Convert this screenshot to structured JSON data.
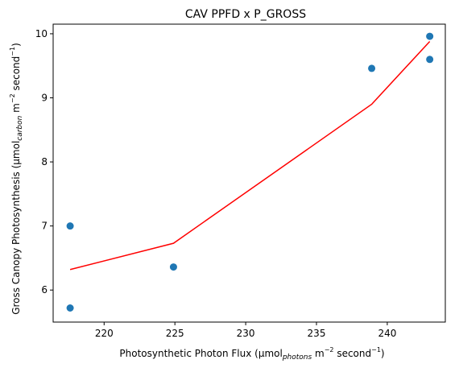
{
  "chart_data": {
    "type": "scatter",
    "title": "CAV PPFD x P_GROSS",
    "xlabel": {
      "prefix": "Photosynthetic Photon Flux (μmol",
      "sub": "photons",
      "mid": " m",
      "sup1": "−2",
      "mid2": " second",
      "sup2": "−1",
      "suffix": ")"
    },
    "ylabel": {
      "prefix": "Gross Canopy Photosynthesis (μmol",
      "sub": "carbon",
      "mid": " m",
      "sup1": "−2",
      "mid2": " second",
      "sup2": "−1",
      "suffix": ")"
    },
    "xlim": [
      216.4,
      244.1
    ],
    "ylim": [
      5.5,
      10.15
    ],
    "xticks": [
      220,
      225,
      230,
      235,
      240
    ],
    "yticks": [
      6,
      7,
      8,
      9,
      10
    ],
    "grid": false,
    "series": [
      {
        "kind": "scatter",
        "color": "#1f77b4",
        "points": [
          {
            "x": 217.6,
            "y": 7.0
          },
          {
            "x": 217.6,
            "y": 5.72
          },
          {
            "x": 224.9,
            "y": 6.36
          },
          {
            "x": 238.9,
            "y": 9.46
          },
          {
            "x": 243.0,
            "y": 9.96
          },
          {
            "x": 243.0,
            "y": 9.6
          }
        ]
      },
      {
        "kind": "line",
        "color": "#ff0000",
        "points": [
          {
            "x": 217.6,
            "y": 6.32
          },
          {
            "x": 224.9,
            "y": 6.73
          },
          {
            "x": 238.9,
            "y": 8.9
          },
          {
            "x": 243.0,
            "y": 9.88
          }
        ]
      }
    ]
  }
}
